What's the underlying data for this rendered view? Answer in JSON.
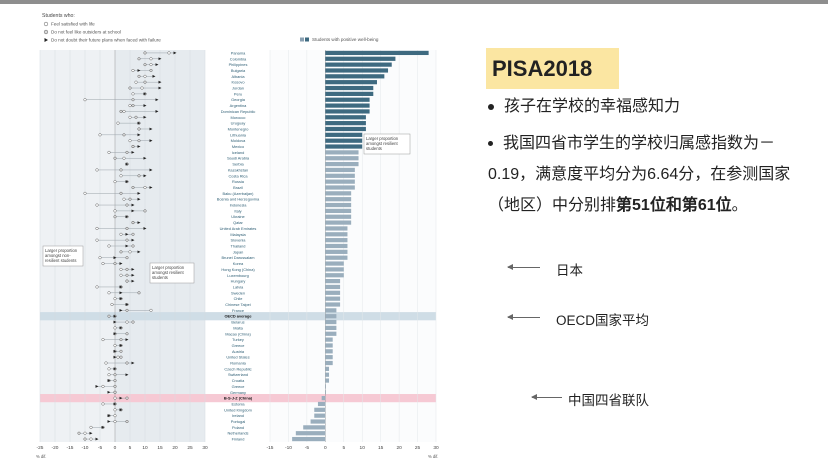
{
  "slide": {
    "title": "PISA2018",
    "bullet1": "孩子在学校的幸福感知力",
    "para_part1": "我国四省市学生的学校归属感指数为－0.19，满意度平均分为6.64分，在参测国家（地区）中分别排",
    "para_bold": "第51位和第61位",
    "para_end": "。",
    "notes": {
      "japan": "日本",
      "oecd": "OECD国家平均",
      "china": "中国四省联队"
    }
  },
  "figure": {
    "legend_title": "Students who:",
    "legend_items": [
      "Feel satisfied with life",
      "Do not feel like outsiders at school",
      "Do not doubt their future plans when faced with failure"
    ],
    "legend_right": "Students with positive well-being",
    "callouts": {
      "left_a": [
        "Larger proportion",
        "amongst non-",
        "resilient students"
      ],
      "left_b": [
        "Larger proportion",
        "amongst resilient",
        "students"
      ],
      "right": [
        "Larger proportion",
        "amongst resilient",
        "students"
      ]
    },
    "pct_label": "% dif."
  },
  "chart_data": {
    "type": "dot-and-bar",
    "left_panel": {
      "xlim": [
        -25,
        30
      ],
      "ticks": [
        "-25",
        "-20",
        "-15",
        "-10",
        "-5",
        "0",
        "5",
        "10",
        "15",
        "20",
        "25",
        "30"
      ],
      "series": [
        "Feel satisfied with life",
        "Do not feel like outsiders at school",
        "Do not doubt their future plans when faced with failure"
      ]
    },
    "right_panel": {
      "xlim": [
        -15,
        30
      ],
      "ticks": [
        "-15",
        "-10",
        "-5",
        "0",
        "5",
        "10",
        "15",
        "20",
        "25",
        "30"
      ],
      "series": "Students with positive well-being"
    },
    "countries": [
      "Panama",
      "Colombia",
      "Philippines",
      "Bulgaria",
      "Albania",
      "Kosovo",
      "Jordan",
      "Peru",
      "Georgia",
      "Argentina",
      "Dominican Republic",
      "Morocco",
      "Uruguay",
      "Montenegro",
      "Lithuania",
      "Moldova",
      "Mexico",
      "Iceland",
      "Saudi Arabia",
      "Serbia",
      "Kazakhstan",
      "Costa Rica",
      "Russia",
      "Brazil",
      "Baku (Azerbaijan)",
      "Bosnia and Herzegovina",
      "Indonesia",
      "Italy",
      "Ukraine",
      "Qatar",
      "United Arab Emirates",
      "Malaysia",
      "Slovenia",
      "Thailand",
      "Japan",
      "Brunei Darussalam",
      "Korea",
      "Hong Kong (China)",
      "Luxembourg",
      "Hungary",
      "Latvia",
      "Sweden",
      "Chile",
      "Chinese Taipei",
      "France",
      "OECD average",
      "Belarus",
      "Malta",
      "Macao (China)",
      "Turkey",
      "Greece",
      "Austria",
      "United States",
      "Romania",
      "Czech Republic",
      "Switzerland",
      "Croatia",
      "Greece",
      "Germany",
      "B-S-J-Z (China)",
      "Estonia",
      "United Kingdom",
      "Ireland",
      "Portugal",
      "Poland",
      "Netherlands",
      "Finland"
    ],
    "wellbeing_diff": [
      28,
      19,
      18,
      17,
      16,
      14,
      13,
      13,
      12,
      12,
      12,
      11,
      11,
      11,
      10,
      10,
      10,
      9,
      9,
      9,
      8,
      8,
      8,
      8,
      7,
      7,
      7,
      7,
      7,
      7,
      6,
      6,
      6,
      6,
      6,
      6,
      5,
      5,
      5,
      4,
      4,
      4,
      4,
      4,
      3,
      3,
      3,
      3,
      3,
      2,
      2,
      2,
      2,
      2,
      1,
      1,
      1,
      0,
      0,
      -1,
      -2,
      -3,
      -3,
      -4,
      -6,
      -8,
      -9
    ],
    "satisfied_diff": [
      18,
      12,
      12,
      6,
      10,
      7,
      9,
      6,
      -10,
      5,
      3,
      5,
      1,
      8,
      -5,
      5,
      6,
      -2,
      3,
      4,
      -6,
      2,
      0,
      10,
      -10,
      3,
      -6,
      0,
      4,
      6,
      -6,
      2,
      -6,
      -2,
      5,
      -5,
      -4,
      2,
      2,
      4,
      -6,
      -2,
      0,
      -1,
      12,
      0,
      4,
      0,
      0,
      -4,
      0,
      0,
      1,
      -3,
      -2,
      -2,
      -2,
      -4,
      0,
      0,
      -4,
      0,
      0,
      0,
      -8,
      -10,
      -8
    ],
    "outsider_diff": [
      10,
      8,
      10,
      12,
      8,
      10,
      5,
      10,
      6,
      6,
      2,
      7,
      8,
      8,
      3,
      8,
      6,
      4,
      0,
      4,
      2,
      8,
      4,
      6,
      2,
      5,
      4,
      10,
      0,
      6,
      4,
      6,
      4,
      6,
      2,
      4,
      0,
      4,
      4,
      4,
      2,
      8,
      2,
      4,
      4,
      -2,
      6,
      2,
      4,
      2,
      2,
      2,
      2,
      4,
      0,
      0,
      0,
      0,
      0,
      4,
      0,
      2,
      -2,
      4,
      -4,
      -12,
      -10
    ],
    "failure_diff": [
      20,
      15,
      14,
      8,
      13,
      15,
      15,
      10,
      14,
      10,
      14,
      10,
      8,
      12,
      8,
      12,
      8,
      6,
      10,
      4,
      12,
      10,
      4,
      12,
      8,
      8,
      6,
      6,
      4,
      8,
      10,
      4,
      6,
      4,
      8,
      0,
      2,
      6,
      6,
      6,
      2,
      2,
      2,
      4,
      2,
      0,
      0,
      2,
      0,
      4,
      2,
      0,
      0,
      6,
      0,
      4,
      -2,
      -6,
      -2,
      2,
      0,
      2,
      -2,
      -2,
      -4,
      -8,
      -6
    ]
  }
}
